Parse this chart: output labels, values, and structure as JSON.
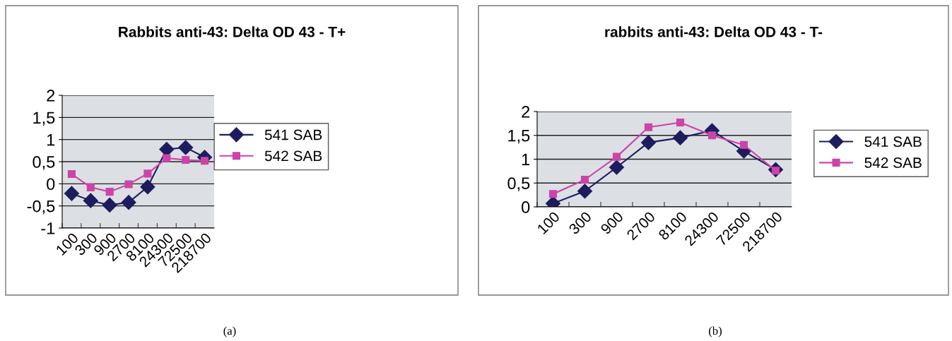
{
  "chart_data": [
    {
      "type": "line",
      "title": "Rabbits anti-43: Delta OD 43 - T+",
      "categories": [
        "100",
        "300",
        "900",
        "2700",
        "8100",
        "24300",
        "72500",
        "218700"
      ],
      "series": [
        {
          "name": "541 SAB",
          "color": "#1c1c5e",
          "marker": "diamond",
          "values": [
            -0.22,
            -0.38,
            -0.48,
            -0.42,
            -0.07,
            0.78,
            0.82,
            0.6
          ]
        },
        {
          "name": "542 SAB",
          "color": "#cc44aa",
          "marker": "square",
          "values": [
            0.22,
            -0.08,
            -0.18,
            -0.01,
            0.23,
            0.58,
            0.54,
            0.52
          ]
        }
      ],
      "ylim": [
        -1,
        2
      ],
      "yticks": [
        {
          "value": -1,
          "label": "-1"
        },
        {
          "value": -0.5,
          "label": "-0,5"
        },
        {
          "value": 0,
          "label": "0"
        },
        {
          "value": 0.5,
          "label": "0,5"
        },
        {
          "value": 1,
          "label": "1"
        },
        {
          "value": 1.5,
          "label": "1,5"
        },
        {
          "value": 2,
          "label": "2"
        }
      ],
      "grid": "y",
      "legend": "right",
      "line_style": "solid",
      "annotations": [
        "(a)"
      ]
    },
    {
      "type": "line",
      "title": "rabbits anti-43: Delta OD 43 - T-",
      "categories": [
        "100",
        "300",
        "900",
        "2700",
        "8100",
        "24300",
        "72500",
        "218700"
      ],
      "series": [
        {
          "name": "541 SAB",
          "color": "#1c1c5e",
          "marker": "diamond",
          "values": [
            0.07,
            0.33,
            0.83,
            1.35,
            1.45,
            1.6,
            1.17,
            0.78
          ]
        },
        {
          "name": "542 SAB",
          "color": "#cc44aa",
          "marker": "square",
          "values": [
            0.27,
            0.57,
            1.05,
            1.67,
            1.77,
            1.5,
            1.3,
            0.76
          ]
        }
      ],
      "ylim": [
        0,
        2
      ],
      "yticks": [
        {
          "value": 0,
          "label": "0"
        },
        {
          "value": 0.5,
          "label": "0,5"
        },
        {
          "value": 1,
          "label": "1"
        },
        {
          "value": 1.5,
          "label": "1,5"
        },
        {
          "value": 2,
          "label": "2"
        }
      ],
      "grid": "y",
      "legend": "right",
      "line_style": "solid",
      "annotations": [
        "(b)"
      ]
    }
  ]
}
